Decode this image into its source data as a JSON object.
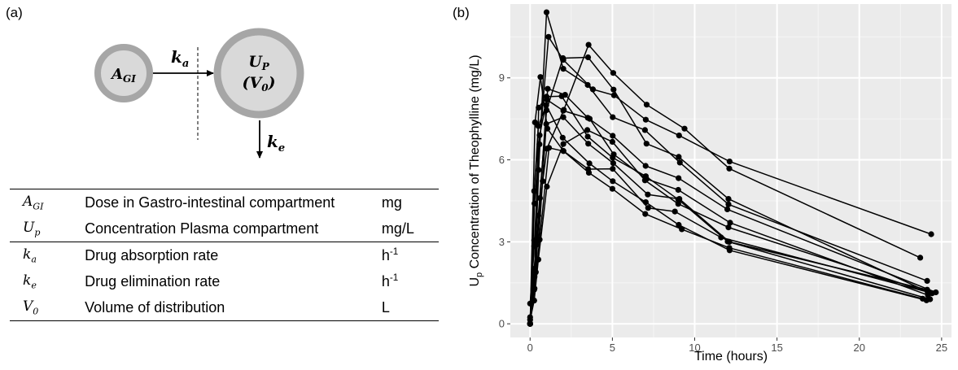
{
  "panel_a": {
    "label": "(a)",
    "diagram": {
      "gi_compartment": {
        "name": "A",
        "sub": "GI"
      },
      "plasma_compartment": {
        "name": "U",
        "sub": "P",
        "volume": "(V",
        "volume_sub": "0",
        "volume_close": ")"
      },
      "absorption": {
        "name": "k",
        "sub": "a"
      },
      "elimination": {
        "name": "k",
        "sub": "e"
      }
    },
    "table": {
      "rows": [
        {
          "sym": "A",
          "sub": "GI",
          "desc": "Dose in Gastro-intestinal compartment",
          "unit": "mg",
          "unit_sup": ""
        },
        {
          "sym": "U",
          "sub": "p",
          "desc": "Concentration Plasma compartment",
          "unit": "mg/L",
          "unit_sup": ""
        },
        {
          "sym": "k",
          "sub": "a",
          "desc": "Drug absorption rate",
          "unit": "h",
          "unit_sup": "-1"
        },
        {
          "sym": "k",
          "sub": "e",
          "desc": "Drug elimination rate",
          "unit": "h",
          "unit_sup": "-1"
        },
        {
          "sym": "V",
          "sub": "0",
          "desc": "Volume of distribution",
          "unit": "L",
          "unit_sup": ""
        }
      ]
    }
  },
  "panel_b": {
    "label": "(b)"
  },
  "chart_data": {
    "type": "line",
    "xlabel": "Time (hours)",
    "ylabel_prefix": "U",
    "ylabel_sub": "p",
    "ylabel_rest": " Concentration of Theophylline (mg/L)",
    "xlim": [
      -1.2,
      25.6
    ],
    "ylim": [
      -0.5,
      11.7
    ],
    "xticks": [
      0,
      5,
      10,
      15,
      20,
      25
    ],
    "yticks": [
      0,
      3,
      6,
      9
    ],
    "grid": true,
    "background": "#ebebeb",
    "line_color": "#000000",
    "series": [
      {
        "x": [
          0,
          0.25,
          0.57,
          1.12,
          2.02,
          3.82,
          5.1,
          7.03,
          9.05,
          12.12,
          24.37
        ],
        "y": [
          0.74,
          2.84,
          6.57,
          10.5,
          9.66,
          8.58,
          8.36,
          7.47,
          6.89,
          5.94,
          3.28
        ]
      },
      {
        "x": [
          0,
          0.27,
          0.52,
          1.0,
          1.92,
          3.5,
          5.02,
          7.03,
          9.0,
          12.0,
          24.3
        ],
        "y": [
          0.0,
          1.72,
          7.91,
          8.31,
          8.33,
          6.85,
          6.08,
          5.4,
          4.55,
          3.01,
          0.9
        ]
      },
      {
        "x": [
          0,
          0.27,
          0.58,
          1.02,
          2.02,
          3.62,
          5.08,
          7.07,
          9.0,
          12.15,
          24.17
        ],
        "y": [
          0.0,
          4.4,
          6.9,
          8.2,
          7.8,
          7.5,
          6.2,
          5.3,
          4.9,
          3.7,
          1.05
        ]
      },
      {
        "x": [
          0,
          0.35,
          0.6,
          1.07,
          2.13,
          3.5,
          5.02,
          7.02,
          9.02,
          11.98,
          24.65
        ],
        "y": [
          0.0,
          1.89,
          4.6,
          8.6,
          8.38,
          7.54,
          6.88,
          5.78,
          5.33,
          4.19,
          1.15
        ]
      },
      {
        "x": [
          0,
          0.3,
          0.52,
          1.0,
          2.02,
          3.5,
          5.02,
          6.98,
          9.1,
          12.05,
          24.12
        ],
        "y": [
          0.0,
          2.02,
          5.63,
          11.4,
          9.33,
          8.74,
          7.56,
          7.09,
          5.9,
          4.37,
          1.57
        ]
      },
      {
        "x": [
          0,
          0.27,
          0.58,
          1.15,
          2.03,
          3.57,
          5.0,
          7.0,
          9.22,
          12.1,
          23.85
        ],
        "y": [
          0.0,
          1.29,
          3.08,
          6.44,
          6.32,
          5.53,
          4.94,
          4.02,
          3.46,
          2.78,
          0.92
        ]
      },
      {
        "x": [
          0,
          0.25,
          0.5,
          1.02,
          2.02,
          3.48,
          5.0,
          6.98,
          9.0,
          12.05,
          24.22
        ],
        "y": [
          0.15,
          0.85,
          2.35,
          5.02,
          6.58,
          7.09,
          6.66,
          5.25,
          4.39,
          3.53,
          1.15
        ]
      },
      {
        "x": [
          0,
          0.25,
          0.52,
          0.98,
          2.02,
          3.53,
          5.05,
          7.15,
          9.07,
          12.1,
          24.12
        ],
        "y": [
          0.0,
          3.05,
          3.05,
          7.31,
          7.56,
          6.59,
          5.88,
          4.73,
          4.57,
          3.0,
          1.25
        ]
      },
      {
        "x": [
          0,
          0.3,
          0.63,
          1.05,
          2.02,
          3.53,
          5.02,
          7.17,
          8.8,
          11.6,
          24.43
        ],
        "y": [
          0.0,
          7.37,
          9.03,
          7.14,
          6.33,
          5.66,
          5.67,
          4.24,
          4.11,
          3.16,
          1.12
        ]
      },
      {
        "x": [
          0,
          0.37,
          0.77,
          1.02,
          2.05,
          3.55,
          5.05,
          7.08,
          9.38,
          12.1,
          23.7
        ],
        "y": [
          0.24,
          2.89,
          5.22,
          6.41,
          7.83,
          10.21,
          9.18,
          8.02,
          7.14,
          5.68,
          2.42
        ]
      },
      {
        "x": [
          0,
          0.25,
          0.5,
          0.98,
          1.98,
          3.6,
          5.02,
          7.03,
          9.03,
          12.12,
          24.08
        ],
        "y": [
          0.0,
          4.86,
          7.24,
          8.0,
          6.81,
          5.87,
          5.22,
          4.45,
          3.62,
          2.69,
          0.86
        ]
      },
      {
        "x": [
          0,
          0.25,
          0.5,
          1.0,
          2.0,
          3.52,
          5.07,
          7.07,
          9.03,
          12.05,
          24.15
        ],
        "y": [
          0.0,
          1.25,
          3.96,
          7.82,
          9.72,
          9.75,
          8.57,
          6.59,
          6.11,
          4.57,
          1.17
        ]
      }
    ]
  }
}
